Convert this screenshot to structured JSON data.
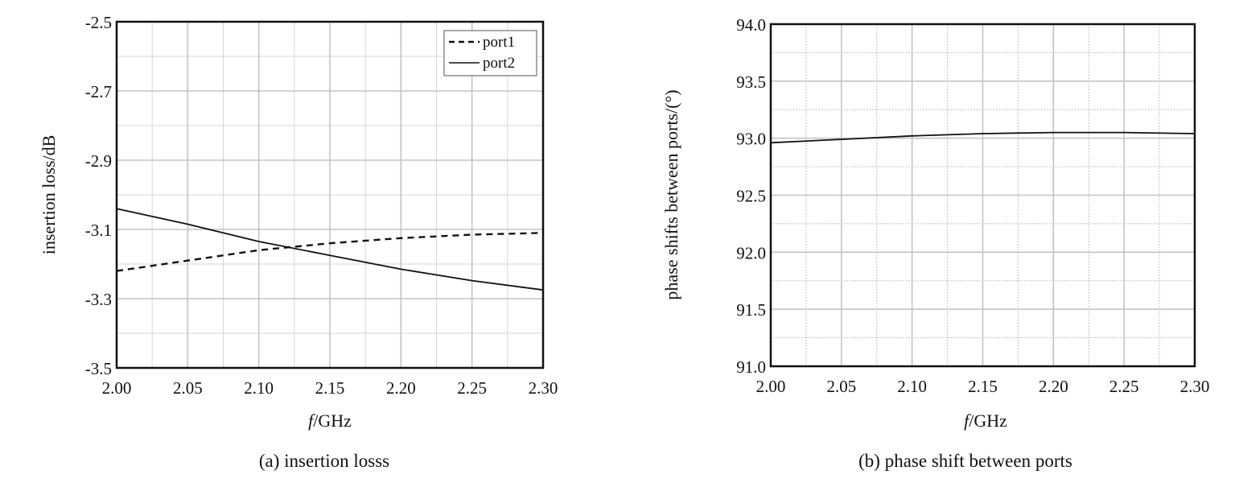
{
  "chart_data": [
    {
      "type": "line",
      "caption": "(a) insertion losss",
      "xlabel_italic": "f",
      "xlabel_rest": "/GHz",
      "ylabel": "insertion loss/dB",
      "xlim": [
        2.0,
        2.3
      ],
      "ylim": [
        -3.5,
        -2.5
      ],
      "x_ticks": [
        "2.00",
        "2.05",
        "2.10",
        "2.15",
        "2.20",
        "2.25",
        "2.30"
      ],
      "y_ticks": [
        "-2.5",
        "-2.7",
        "-2.9",
        "-3.1",
        "-3.3",
        "-3.5"
      ],
      "grid": true,
      "legend_position": "top-right",
      "series": [
        {
          "name": "port1",
          "line_style": "dashed",
          "x": [
            2.0,
            2.05,
            2.1,
            2.15,
            2.2,
            2.25,
            2.3
          ],
          "y": [
            -3.22,
            -3.19,
            -3.16,
            -3.14,
            -3.125,
            -3.115,
            -3.11
          ]
        },
        {
          "name": "port2",
          "line_style": "solid",
          "x": [
            2.0,
            2.05,
            2.1,
            2.15,
            2.2,
            2.25,
            2.3
          ],
          "y": [
            -3.04,
            -3.085,
            -3.135,
            -3.175,
            -3.215,
            -3.248,
            -3.275
          ]
        }
      ]
    },
    {
      "type": "line",
      "caption": "(b) phase shift between ports",
      "xlabel_italic": "f",
      "xlabel_rest": "/GHz",
      "ylabel": "phase shifts between ports/(°)",
      "xlim": [
        2.0,
        2.3
      ],
      "ylim": [
        91.0,
        94.0
      ],
      "x_ticks": [
        "2.00",
        "2.05",
        "2.10",
        "2.15",
        "2.20",
        "2.25",
        "2.30"
      ],
      "y_ticks": [
        "94.0",
        "93.5",
        "93.0",
        "92.5",
        "92.0",
        "91.5",
        "91.0"
      ],
      "grid": true,
      "series": [
        {
          "line_style": "solid",
          "x": [
            2.0,
            2.05,
            2.1,
            2.15,
            2.2,
            2.25,
            2.3
          ],
          "y": [
            92.96,
            92.99,
            93.02,
            93.04,
            93.05,
            93.05,
            93.04
          ]
        }
      ]
    }
  ]
}
